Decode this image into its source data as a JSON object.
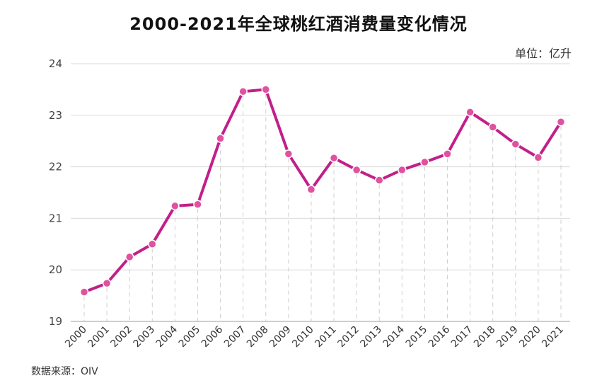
{
  "title": "2000-2021年全球桃红酒消费量变化情况",
  "unit_label": "单位：亿升",
  "source_label": "数据来源：OIV",
  "colors": {
    "line": "#c21f8a",
    "marker": "#e0529f",
    "grid": "#d9d9d9",
    "guide": "#cfcfcf"
  },
  "chart_data": {
    "type": "line",
    "title": "2000-2021年全球桃红酒消费量变化情况",
    "xlabel": "",
    "ylabel": "",
    "unit": "亿升",
    "x": [
      "2000",
      "2001",
      "2002",
      "2003",
      "2004",
      "2005",
      "2006",
      "2007",
      "2008",
      "2009",
      "2010",
      "2011",
      "2012",
      "2013",
      "2014",
      "2015",
      "2016",
      "2017",
      "2018",
      "2019",
      "2020",
      "2021"
    ],
    "series": [
      {
        "values": [
          19.57,
          19.74,
          20.25,
          20.5,
          21.24,
          21.27,
          22.55,
          23.46,
          23.5,
          22.25,
          21.56,
          22.17,
          21.94,
          21.74,
          21.94,
          22.09,
          22.25,
          23.06,
          22.77,
          22.44,
          22.18,
          22.87
        ]
      }
    ],
    "yticks": [
      19,
      20,
      21,
      22,
      23,
      24
    ],
    "ylim": [
      19,
      24
    ],
    "grid": true
  }
}
